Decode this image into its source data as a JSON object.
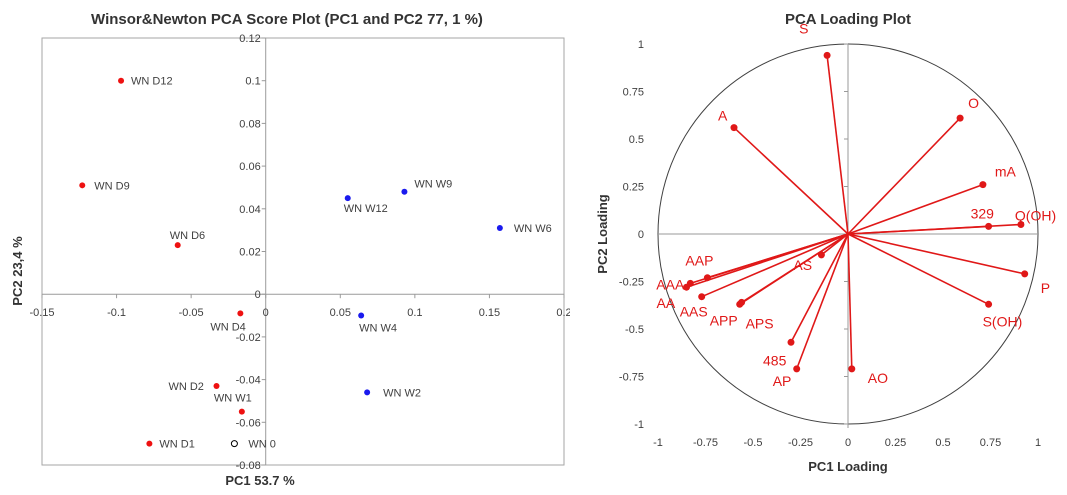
{
  "chart_data": [
    {
      "type": "scatter",
      "title": "Winsor&Newton PCA Score Plot (PC1 and PC2 77, 1 %)",
      "xlabel": "PC1 53.7 %",
      "ylabel": "PC2  23,4 %",
      "xlim": [
        -0.15,
        0.2
      ],
      "ylim": [
        -0.08,
        0.12
      ],
      "x_ticks": [
        "-0.15",
        "-0.1",
        "-0.05",
        "0",
        "0.05",
        "0.1",
        "0.15",
        "0.2"
      ],
      "y_ticks": [
        "-0.08",
        "-0.06",
        "-0.04",
        "-0.02",
        "0",
        "0.02",
        "0.04",
        "0.06",
        "0.08",
        "0.1",
        "0.12"
      ],
      "grid": false,
      "colors": {
        "D": "#ee1111",
        "W": "#1a1aee",
        "zero": "#000000"
      },
      "points": [
        {
          "label": "WN D12",
          "x": -0.097,
          "y": 0.1,
          "group": "D"
        },
        {
          "label": "WN D9",
          "x": -0.123,
          "y": 0.051,
          "group": "D"
        },
        {
          "label": "WN D6",
          "x": -0.059,
          "y": 0.023,
          "group": "D"
        },
        {
          "label": "WN D4",
          "x": -0.017,
          "y": -0.009,
          "group": "D"
        },
        {
          "label": "WN D2",
          "x": -0.033,
          "y": -0.043,
          "group": "D"
        },
        {
          "label": "WN W1",
          "x": -0.016,
          "y": -0.055,
          "group": "D"
        },
        {
          "label": "WN D1",
          "x": -0.078,
          "y": -0.07,
          "group": "D"
        },
        {
          "label": "WN 0",
          "x": -0.021,
          "y": -0.07,
          "group": "zero"
        },
        {
          "label": "WN W12",
          "x": 0.055,
          "y": 0.045,
          "group": "W"
        },
        {
          "label": "WN W9",
          "x": 0.093,
          "y": 0.048,
          "group": "W"
        },
        {
          "label": "WN W6",
          "x": 0.157,
          "y": 0.031,
          "group": "W"
        },
        {
          "label": "WN W4",
          "x": 0.064,
          "y": -0.01,
          "group": "W"
        },
        {
          "label": "WN W2",
          "x": 0.068,
          "y": -0.046,
          "group": "W"
        }
      ]
    },
    {
      "type": "scatter",
      "title": "PCA Loading Plot",
      "xlabel": "PC1 Loading",
      "ylabel": "PC2  Loading",
      "xlim": [
        -1,
        1
      ],
      "ylim": [
        -1,
        1
      ],
      "x_ticks": [
        "-1",
        "-0.75",
        "-0.5",
        "-0.25",
        "0",
        "0.25",
        "0.5",
        "0.75",
        "1"
      ],
      "y_ticks": [
        "-1",
        "-0.75",
        "-0.5",
        "-0.25",
        "0",
        "0.25",
        "0.5",
        "0.75",
        "1"
      ],
      "grid": false,
      "unit_circle": true,
      "color": "#e01818",
      "vectors": [
        {
          "label": "S",
          "x": -0.11,
          "y": 0.94
        },
        {
          "label": "A",
          "x": -0.6,
          "y": 0.56
        },
        {
          "label": "O",
          "x": 0.59,
          "y": 0.61
        },
        {
          "label": "mA",
          "x": 0.71,
          "y": 0.26
        },
        {
          "label": "329",
          "x": 0.74,
          "y": 0.04
        },
        {
          "label": "Q(OH)",
          "x": 0.91,
          "y": 0.05
        },
        {
          "label": "P",
          "x": 0.93,
          "y": -0.21
        },
        {
          "label": "S(OH)",
          "x": 0.74,
          "y": -0.37
        },
        {
          "label": "AO",
          "x": 0.02,
          "y": -0.71
        },
        {
          "label": "AP",
          "x": -0.27,
          "y": -0.71
        },
        {
          "label": "485",
          "x": -0.3,
          "y": -0.57
        },
        {
          "label": "APP",
          "x": -0.57,
          "y": -0.37
        },
        {
          "label": "APS",
          "x": -0.56,
          "y": -0.36
        },
        {
          "label": "AS",
          "x": -0.14,
          "y": -0.11
        },
        {
          "label": "AAS",
          "x": -0.77,
          "y": -0.33
        },
        {
          "label": "AAP",
          "x": -0.74,
          "y": -0.23
        },
        {
          "label": "AAA",
          "x": -0.83,
          "y": -0.26
        },
        {
          "label": "AA",
          "x": -0.85,
          "y": -0.28
        }
      ]
    }
  ]
}
